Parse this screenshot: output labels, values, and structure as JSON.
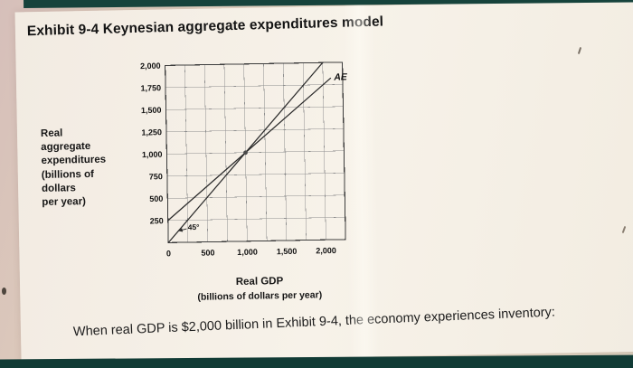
{
  "exhibit": {
    "title": "Exhibit 9-4 Keynesian aggregate expenditures model"
  },
  "question": {
    "text": "When real GDP is $2,000 billion in Exhibit 9-4, the economy experiences inventory:"
  },
  "chart_data": {
    "type": "line",
    "title": "Exhibit 9-4 Keynesian aggregate expenditures model",
    "ylabel_lines": [
      "Real",
      "aggregate",
      "expenditures",
      "(billions of",
      "dollars",
      "per year)"
    ],
    "xlabel": "Real GDP",
    "xlabel_sub": "(billions of dollars per year)",
    "xlim": [
      0,
      2250
    ],
    "ylim": [
      0,
      2000
    ],
    "grid_step": 250,
    "grid": true,
    "x_ticks": [
      {
        "value": 0,
        "label": "0"
      },
      {
        "value": 500,
        "label": "500"
      },
      {
        "value": 1000,
        "label": "1,000"
      },
      {
        "value": 1500,
        "label": "1,500"
      },
      {
        "value": 2000,
        "label": "2,000"
      }
    ],
    "y_ticks": [
      {
        "value": 250,
        "label": "250"
      },
      {
        "value": 500,
        "label": "500"
      },
      {
        "value": 750,
        "label": "750"
      },
      {
        "value": 1000,
        "label": "1,000"
      },
      {
        "value": 1250,
        "label": "1,250"
      },
      {
        "value": 1500,
        "label": "1,500"
      },
      {
        "value": 1750,
        "label": "1,750"
      },
      {
        "value": 2000,
        "label": "2,000"
      }
    ],
    "series": [
      {
        "name": "45-degree-line",
        "points": [
          [
            0,
            0
          ],
          [
            2000,
            2000
          ]
        ]
      },
      {
        "name": "AE",
        "points": [
          [
            0,
            250
          ],
          [
            2100,
            1825
          ]
        ]
      }
    ],
    "equilibrium_point": [
      1000,
      1000
    ],
    "annotations": [
      {
        "id": "ae-label",
        "text": "AE",
        "x": 2140,
        "y": 1800
      },
      {
        "id": "angle-label",
        "text": "45°",
        "x": 250,
        "y": 140
      }
    ],
    "colors": {
      "line": "#2b2b2b",
      "grid": "#8f8f8f",
      "text": "#111111"
    }
  }
}
